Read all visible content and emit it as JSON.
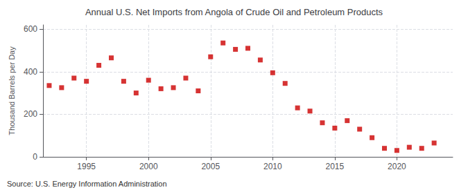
{
  "chart_data": {
    "type": "scatter",
    "title": "Annual U.S. Net Imports from Angola of Crude Oil and Petroleum Products",
    "ylabel": "Thousand Barrels per Day",
    "annotations": [
      "Source: U.S. Energy Information Administration"
    ],
    "x": [
      1992,
      1993,
      1994,
      1995,
      1996,
      1997,
      1998,
      1999,
      2000,
      2001,
      2002,
      2003,
      2004,
      2005,
      2006,
      2007,
      2008,
      2009,
      2010,
      2011,
      2012,
      2013,
      2014,
      2015,
      2016,
      2017,
      2018,
      2019,
      2020,
      2021,
      2022,
      2023
    ],
    "values": [
      335,
      325,
      370,
      355,
      430,
      465,
      355,
      300,
      360,
      320,
      325,
      370,
      310,
      470,
      535,
      505,
      510,
      455,
      395,
      345,
      230,
      215,
      160,
      135,
      170,
      130,
      90,
      40,
      30,
      45,
      40,
      65
    ],
    "color": "#CC0000",
    "marker": "square",
    "xlim": [
      1991.5,
      2024.5
    ],
    "xticks": [
      1995,
      2000,
      2005,
      2010,
      2015,
      2020
    ],
    "ylim": [
      0,
      620
    ],
    "yticks": [
      0,
      200,
      400,
      600
    ],
    "grid": true
  }
}
